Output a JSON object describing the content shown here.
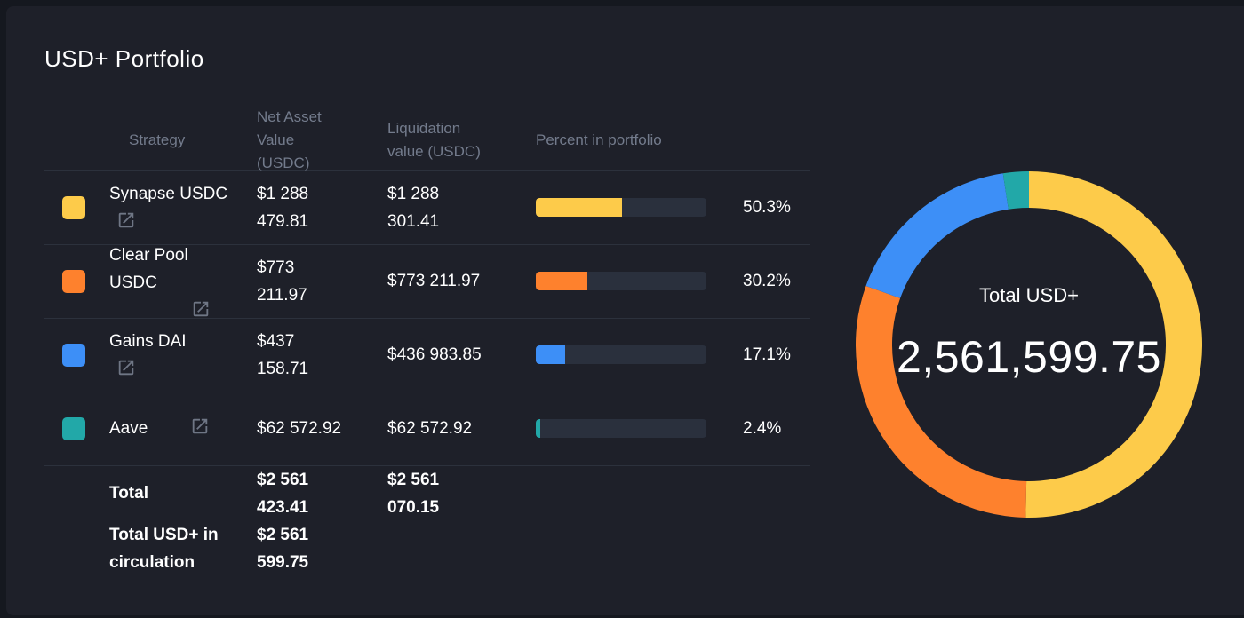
{
  "card": {
    "title": "USD+ Portfolio"
  },
  "table": {
    "headers": {
      "strategy": "Strategy",
      "nav": [
        "Net Asset",
        "Value",
        "(USDC)"
      ],
      "liquidation": [
        "Liquidation",
        "value (USDC)"
      ],
      "percent": "Percent in portfolio"
    },
    "rows": [
      {
        "name_lines": [
          "Synapse USDC"
        ],
        "color": "#fdcb4a",
        "nav_lines": [
          "$1 288",
          "479.81"
        ],
        "liq_lines": [
          "$1 288",
          "301.41"
        ],
        "percent_value": 50.3,
        "percent_label": "50.3%",
        "icon": "open-in-new-icon"
      },
      {
        "name_lines": [
          "Clear Pool",
          "USDC"
        ],
        "color": "#fe812d",
        "nav_lines": [
          "$773",
          "211.97"
        ],
        "liq_lines": [
          "$773 211.97"
        ],
        "percent_value": 30.2,
        "percent_label": "30.2%",
        "icon": "open-in-new-icon"
      },
      {
        "name_lines": [
          "Gains DAI"
        ],
        "color": "#3d8ff7",
        "nav_lines": [
          "$437",
          "158.71"
        ],
        "liq_lines": [
          "$436 983.85"
        ],
        "percent_value": 17.1,
        "percent_label": "17.1%",
        "icon": "open-in-new-icon"
      },
      {
        "name_lines": [
          "Aave"
        ],
        "color": "#22a8a8",
        "nav_lines": [
          "$62 572.92"
        ],
        "liq_lines": [
          "$62 572.92"
        ],
        "percent_value": 2.4,
        "percent_label": "2.4%",
        "icon": "open-in-new-icon"
      }
    ],
    "totals": {
      "total_label": "Total",
      "total_nav_lines": [
        "$2 561",
        "423.41"
      ],
      "total_liq_lines": [
        "$2 561",
        "070.15"
      ],
      "circulation_label_lines": [
        "Total USD+ in",
        "circulation"
      ],
      "circulation_nav_lines": [
        "$2 561",
        "599.75"
      ]
    }
  },
  "donut": {
    "label": "Total USD+",
    "total": "2,561,599.75"
  },
  "chart_data": {
    "type": "pie",
    "variant": "donut",
    "title": "Total USD+",
    "center_value": "2,561,599.75",
    "categories": [
      "Synapse USDC",
      "Clear Pool USDC",
      "Gains DAI",
      "Aave"
    ],
    "values": [
      50.3,
      30.2,
      17.1,
      2.4
    ],
    "amounts": [
      1288479.81,
      773211.97,
      437158.71,
      62572.92
    ],
    "colors": [
      "#fdcb4a",
      "#fe812d",
      "#3d8ff7",
      "#22a8a8"
    ],
    "start_angle": "top",
    "direction": "clockwise",
    "legend": "none"
  }
}
